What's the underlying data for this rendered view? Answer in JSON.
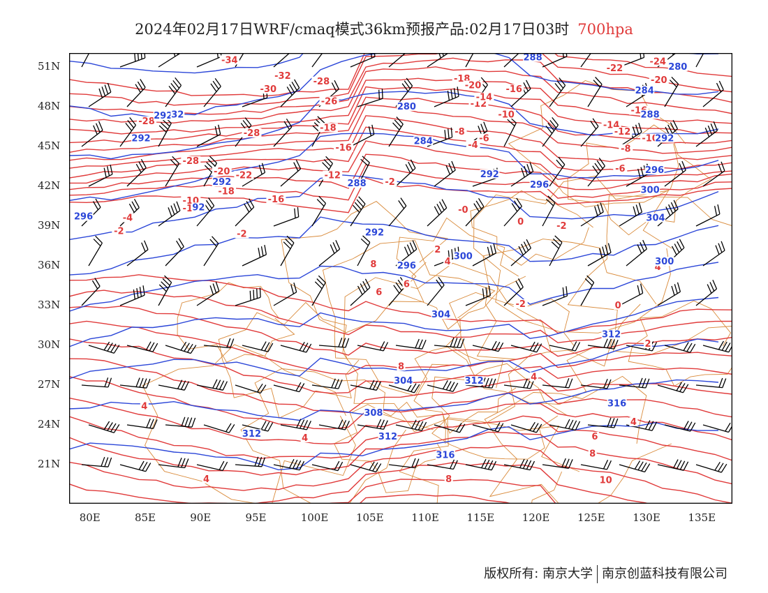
{
  "title": {
    "main": "2024年02月17日WRF/cmaq模式36km预报产品:02月17日03时",
    "level": "700hpa"
  },
  "colors": {
    "temperature": "#e03a3a",
    "theta": "#2b46d8",
    "boundary": "#d98a3a",
    "wind": "#000000"
  },
  "axes": {
    "lat_ticks": [
      "51N",
      "48N",
      "45N",
      "42N",
      "39N",
      "36N",
      "33N",
      "30N",
      "27N",
      "24N",
      "21N"
    ],
    "lon_ticks": [
      "80E",
      "85E",
      "90E",
      "95E",
      "100E",
      "105E",
      "110E",
      "115E",
      "120E",
      "125E",
      "130E",
      "135E"
    ]
  },
  "footer": {
    "left": "版权所有: 南京大学",
    "right": "南京创蓝科技有限公司"
  },
  "labels": {
    "temperature": [
      {
        "t": "-34",
        "lon": 92.5,
        "lat": 51.4
      },
      {
        "t": "-32",
        "lon": 97.3,
        "lat": 50.2
      },
      {
        "t": "-30",
        "lon": 96.0,
        "lat": 49.2
      },
      {
        "t": "-28",
        "lon": 100.8,
        "lat": 49.8
      },
      {
        "t": "-26",
        "lon": 101.5,
        "lat": 48.3
      },
      {
        "t": "-28",
        "lon": 85.0,
        "lat": 46.8
      },
      {
        "t": "-28",
        "lon": 94.5,
        "lat": 45.9
      },
      {
        "t": "-28",
        "lon": 89.0,
        "lat": 43.8
      },
      {
        "t": "-18",
        "lon": 101.4,
        "lat": 46.3
      },
      {
        "t": "-16",
        "lon": 102.8,
        "lat": 44.8
      },
      {
        "t": "-20",
        "lon": 91.8,
        "lat": 43.0
      },
      {
        "t": "-22",
        "lon": 93.8,
        "lat": 42.7
      },
      {
        "t": "-18",
        "lon": 92.2,
        "lat": 41.5
      },
      {
        "t": "-16",
        "lon": 96.7,
        "lat": 40.9
      },
      {
        "t": "-12",
        "lon": 101.8,
        "lat": 42.7
      },
      {
        "t": "-2",
        "lon": 107.0,
        "lat": 42.2
      },
      {
        "t": "-10",
        "lon": 89.0,
        "lat": 40.8
      },
      {
        "t": "-12",
        "lon": 89.0,
        "lat": 40.2
      },
      {
        "t": "-4",
        "lon": 83.3,
        "lat": 39.5
      },
      {
        "t": "-2",
        "lon": 82.5,
        "lat": 38.5
      },
      {
        "t": "-2",
        "lon": 93.6,
        "lat": 38.3
      },
      {
        "t": "-0",
        "lon": 113.6,
        "lat": 40.1
      },
      {
        "t": "-2",
        "lon": 122.5,
        "lat": 38.9
      },
      {
        "t": "0",
        "lon": 118.8,
        "lat": 39.2
      },
      {
        "t": "2",
        "lon": 111.3,
        "lat": 37.1
      },
      {
        "t": "4",
        "lon": 112.2,
        "lat": 36.2
      },
      {
        "t": "6",
        "lon": 108.5,
        "lat": 34.5
      },
      {
        "t": "6",
        "lon": 106.0,
        "lat": 33.9
      },
      {
        "t": "8",
        "lon": 105.5,
        "lat": 36.0
      },
      {
        "t": "-2",
        "lon": 118.8,
        "lat": 33.0
      },
      {
        "t": "0",
        "lon": 127.6,
        "lat": 32.9
      },
      {
        "t": "2",
        "lon": 130.3,
        "lat": 30.0
      },
      {
        "t": "4",
        "lon": 131.2,
        "lat": 35.8
      },
      {
        "t": "-8",
        "lon": 113.3,
        "lat": 46.0
      },
      {
        "t": "-4",
        "lon": 114.5,
        "lat": 45.0
      },
      {
        "t": "-6",
        "lon": 115.5,
        "lat": 45.5
      },
      {
        "t": "-10",
        "lon": 117.5,
        "lat": 47.3
      },
      {
        "t": "-12",
        "lon": 115.0,
        "lat": 48.1
      },
      {
        "t": "-14",
        "lon": 115.5,
        "lat": 48.6
      },
      {
        "t": "-16",
        "lon": 118.2,
        "lat": 49.2
      },
      {
        "t": "-18",
        "lon": 113.5,
        "lat": 50.0
      },
      {
        "t": "-20",
        "lon": 114.5,
        "lat": 49.5
      },
      {
        "t": "-22",
        "lon": 127.3,
        "lat": 50.8
      },
      {
        "t": "-24",
        "lon": 131.2,
        "lat": 51.3
      },
      {
        "t": "-26",
        "lon": 130.8,
        "lat": 51.8
      },
      {
        "t": "-16",
        "lon": 129.5,
        "lat": 47.6
      },
      {
        "t": "-14",
        "lon": 127.0,
        "lat": 46.5
      },
      {
        "t": "-12",
        "lon": 128.0,
        "lat": 46.0
      },
      {
        "t": "-10",
        "lon": 130.5,
        "lat": 45.5
      },
      {
        "t": "-8",
        "lon": 128.3,
        "lat": 44.7
      },
      {
        "t": "-6",
        "lon": 127.8,
        "lat": 43.2
      },
      {
        "t": "-20",
        "lon": 131.3,
        "lat": 49.9
      },
      {
        "t": "8",
        "lon": 108.0,
        "lat": 28.3
      },
      {
        "t": "4",
        "lon": 120.0,
        "lat": 27.5
      },
      {
        "t": "4",
        "lon": 84.8,
        "lat": 25.3
      },
      {
        "t": "2",
        "lon": 94.4,
        "lat": 23.2
      },
      {
        "t": "4",
        "lon": 99.3,
        "lat": 22.9
      },
      {
        "t": "4",
        "lon": 90.4,
        "lat": 19.8
      },
      {
        "t": "6",
        "lon": 125.5,
        "lat": 23.0
      },
      {
        "t": "8",
        "lon": 125.3,
        "lat": 21.7
      },
      {
        "t": "4",
        "lon": 129.0,
        "lat": 24.1
      },
      {
        "t": "8",
        "lon": 112.3,
        "lat": 19.8
      },
      {
        "t": "10",
        "lon": 126.5,
        "lat": 19.7
      }
    ],
    "theta": [
      {
        "t": "288",
        "lon": 119.9,
        "lat": 51.6
      },
      {
        "t": "280",
        "lon": 108.5,
        "lat": 47.9
      },
      {
        "t": "284",
        "lon": 110.0,
        "lat": 45.3
      },
      {
        "t": "288",
        "lon": 104.0,
        "lat": 42.1
      },
      {
        "t": "292",
        "lon": 116.0,
        "lat": 42.8
      },
      {
        "t": "296",
        "lon": 120.5,
        "lat": 42.0
      },
      {
        "t": "292",
        "lon": 105.6,
        "lat": 38.4
      },
      {
        "t": "300",
        "lon": 113.6,
        "lat": 36.6
      },
      {
        "t": "296",
        "lon": 108.5,
        "lat": 35.9
      },
      {
        "t": "304",
        "lon": 111.6,
        "lat": 32.2
      },
      {
        "t": "312",
        "lon": 127.0,
        "lat": 30.7
      },
      {
        "t": "312",
        "lon": 114.6,
        "lat": 27.2
      },
      {
        "t": "308",
        "lon": 105.5,
        "lat": 24.8
      },
      {
        "t": "312",
        "lon": 106.8,
        "lat": 23.0
      },
      {
        "t": "312",
        "lon": 94.5,
        "lat": 23.2
      },
      {
        "t": "316",
        "lon": 112.0,
        "lat": 21.6
      },
      {
        "t": "316",
        "lon": 127.5,
        "lat": 25.5
      },
      {
        "t": "292",
        "lon": 84.5,
        "lat": 45.5
      },
      {
        "t": "292",
        "lon": 86.5,
        "lat": 47.2
      },
      {
        "t": "32",
        "lon": 87.8,
        "lat": 47.3
      },
      {
        "t": "292",
        "lon": 91.8,
        "lat": 42.2
      },
      {
        "t": "92",
        "lon": 89.7,
        "lat": 40.3
      },
      {
        "t": "296",
        "lon": 79.3,
        "lat": 39.6
      },
      {
        "t": "304",
        "lon": 108.2,
        "lat": 27.2
      },
      {
        "t": "304",
        "lon": 131.0,
        "lat": 39.5
      },
      {
        "t": "300",
        "lon": 130.5,
        "lat": 41.6
      },
      {
        "t": "296",
        "lon": 130.9,
        "lat": 43.1
      },
      {
        "t": "292",
        "lon": 131.8,
        "lat": 45.5
      },
      {
        "t": "288",
        "lon": 130.5,
        "lat": 47.3
      },
      {
        "t": "284",
        "lon": 130.0,
        "lat": 49.1
      },
      {
        "t": "300",
        "lon": 131.8,
        "lat": 36.2
      },
      {
        "t": "280",
        "lon": 133.0,
        "lat": 50.9
      }
    ]
  }
}
